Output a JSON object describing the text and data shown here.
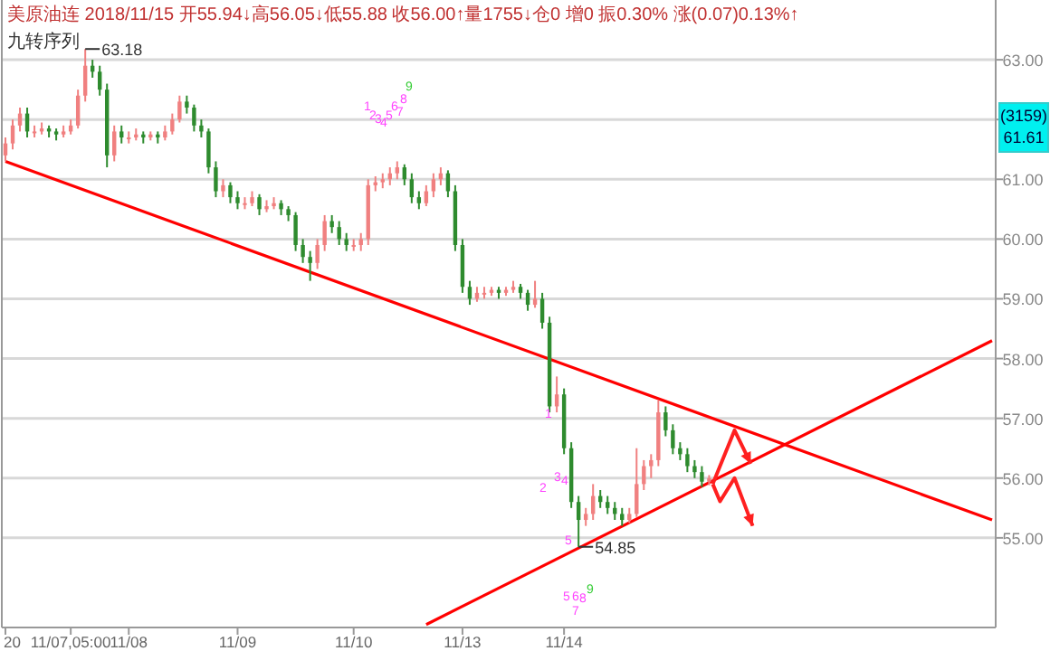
{
  "chart_data": {
    "type": "candlestick",
    "title": "美原油连 2018/11/15 开55.94↓高56.05↓低55.88 收56.00↑量1755↓仓0 增0 振0.30% 涨(0.07)0.13%↑",
    "subtitle": "九转序列",
    "categories": [
      "20",
      null,
      null,
      null,
      null,
      null,
      null,
      null,
      null,
      "11/07,05:00",
      null,
      null,
      null,
      null,
      null,
      null,
      null,
      "11/08",
      null,
      null,
      null,
      null,
      null,
      null,
      null,
      null,
      null,
      null,
      null,
      null,
      null,
      null,
      "11/09",
      null,
      null,
      null,
      null,
      null,
      null,
      null,
      null,
      null,
      null,
      null,
      null,
      null,
      null,
      null,
      "11/10",
      null,
      null,
      null,
      null,
      null,
      null,
      null,
      null,
      null,
      null,
      null,
      null,
      null,
      null,
      "11/13",
      null,
      null,
      null,
      null,
      null,
      null,
      null,
      null,
      null,
      null,
      null,
      null,
      null,
      "11/14",
      null,
      null,
      null,
      null,
      null,
      null,
      null,
      null,
      null,
      null,
      null,
      null,
      null,
      null,
      null,
      null,
      null,
      null,
      null,
      null,
      null,
      null,
      null,
      null,
      null,
      null,
      null,
      null,
      null,
      null,
      null,
      null,
      null,
      null,
      null,
      null,
      null,
      null,
      null,
      null,
      null,
      null,
      null,
      null,
      null,
      null,
      null,
      null,
      null,
      null,
      null,
      null,
      null,
      null,
      null,
      null,
      null,
      null,
      null
    ],
    "ohlc": [
      [
        61.4,
        61.7,
        61.3,
        61.6
      ],
      [
        61.6,
        62.0,
        61.5,
        61.9
      ],
      [
        61.9,
        62.2,
        61.8,
        62.1
      ],
      [
        62.1,
        62.2,
        61.7,
        61.8
      ],
      [
        61.8,
        61.9,
        61.7,
        61.8
      ],
      [
        61.8,
        61.95,
        61.75,
        61.85
      ],
      [
        61.85,
        61.9,
        61.7,
        61.8
      ],
      [
        61.8,
        61.85,
        61.65,
        61.75
      ],
      [
        61.75,
        61.9,
        61.7,
        61.8
      ],
      [
        61.8,
        62.0,
        61.75,
        61.9
      ],
      [
        61.9,
        62.5,
        61.85,
        62.4
      ],
      [
        62.4,
        63.18,
        62.3,
        62.9
      ],
      [
        62.9,
        63.0,
        62.7,
        62.8
      ],
      [
        62.8,
        62.9,
        62.4,
        62.5
      ],
      [
        62.5,
        62.6,
        61.2,
        61.4
      ],
      [
        61.4,
        61.9,
        61.3,
        61.8
      ],
      [
        61.8,
        61.9,
        61.6,
        61.7
      ],
      [
        61.7,
        61.8,
        61.6,
        61.7
      ],
      [
        61.7,
        61.85,
        61.65,
        61.75
      ],
      [
        61.75,
        61.8,
        61.6,
        61.7
      ],
      [
        61.7,
        61.8,
        61.65,
        61.75
      ],
      [
        61.75,
        61.8,
        61.6,
        61.7
      ],
      [
        61.7,
        61.9,
        61.65,
        61.8
      ],
      [
        61.8,
        62.1,
        61.75,
        62.0
      ],
      [
        62.0,
        62.4,
        61.95,
        62.3
      ],
      [
        62.3,
        62.4,
        62.1,
        62.2
      ],
      [
        62.2,
        62.25,
        61.8,
        61.9
      ],
      [
        61.9,
        62.0,
        61.7,
        61.8
      ],
      [
        61.8,
        61.85,
        61.1,
        61.2
      ],
      [
        61.2,
        61.3,
        60.7,
        60.8
      ],
      [
        60.8,
        61.0,
        60.7,
        60.9
      ],
      [
        60.9,
        60.95,
        60.6,
        60.7
      ],
      [
        60.7,
        60.8,
        60.5,
        60.6
      ],
      [
        60.6,
        60.7,
        60.5,
        60.6
      ],
      [
        60.6,
        60.8,
        60.55,
        60.7
      ],
      [
        60.7,
        60.75,
        60.4,
        60.5
      ],
      [
        60.5,
        60.65,
        60.45,
        60.55
      ],
      [
        60.55,
        60.7,
        60.5,
        60.6
      ],
      [
        60.6,
        60.65,
        60.4,
        60.5
      ],
      [
        60.5,
        60.55,
        60.3,
        60.4
      ],
      [
        60.4,
        60.45,
        59.8,
        59.9
      ],
      [
        59.9,
        60.0,
        59.6,
        59.7
      ],
      [
        59.7,
        59.8,
        59.3,
        59.6
      ],
      [
        59.6,
        60.0,
        59.5,
        59.9
      ],
      [
        59.9,
        60.4,
        59.8,
        60.3
      ],
      [
        60.3,
        60.4,
        60.1,
        60.2
      ],
      [
        60.2,
        60.3,
        59.9,
        60.0
      ],
      [
        60.0,
        60.1,
        59.8,
        59.9
      ],
      [
        59.9,
        60.0,
        59.8,
        59.9
      ],
      [
        59.9,
        60.1,
        59.8,
        60.0
      ],
      [
        60.0,
        61.0,
        59.9,
        60.9
      ],
      [
        60.9,
        61.05,
        60.8,
        60.95
      ],
      [
        60.95,
        61.1,
        60.85,
        61.0
      ],
      [
        61.0,
        61.2,
        60.9,
        61.1
      ],
      [
        61.1,
        61.3,
        61.0,
        61.2
      ],
      [
        61.2,
        61.25,
        60.9,
        61.0
      ],
      [
        61.0,
        61.1,
        60.6,
        60.7
      ],
      [
        60.7,
        60.8,
        60.5,
        60.6
      ],
      [
        60.6,
        60.9,
        60.55,
        60.8
      ],
      [
        60.8,
        61.1,
        60.7,
        61.0
      ],
      [
        61.0,
        61.2,
        60.9,
        61.1
      ],
      [
        61.1,
        61.15,
        60.7,
        60.8
      ],
      [
        60.8,
        60.9,
        59.8,
        59.9
      ],
      [
        59.9,
        60.0,
        59.1,
        59.2
      ],
      [
        59.2,
        59.3,
        58.9,
        59.0
      ],
      [
        59.0,
        59.2,
        58.95,
        59.1
      ],
      [
        59.1,
        59.2,
        59.0,
        59.1
      ],
      [
        59.1,
        59.2,
        59.05,
        59.15
      ],
      [
        59.15,
        59.2,
        59.0,
        59.1
      ],
      [
        59.1,
        59.2,
        59.05,
        59.15
      ],
      [
        59.15,
        59.3,
        59.1,
        59.2
      ],
      [
        59.2,
        59.25,
        59.0,
        59.1
      ],
      [
        59.1,
        59.15,
        58.8,
        58.9
      ],
      [
        58.9,
        59.3,
        58.85,
        59.0
      ],
      [
        59.0,
        59.1,
        58.5,
        58.6
      ],
      [
        58.6,
        58.7,
        57.1,
        57.2
      ],
      [
        57.2,
        57.7,
        57.1,
        57.4
      ],
      [
        57.4,
        57.5,
        56.4,
        56.5
      ],
      [
        56.5,
        56.6,
        55.5,
        55.6
      ],
      [
        55.6,
        55.7,
        54.85,
        55.3
      ],
      [
        55.3,
        55.5,
        55.2,
        55.4
      ],
      [
        55.4,
        55.9,
        55.3,
        55.7
      ],
      [
        55.7,
        55.8,
        55.5,
        55.6
      ],
      [
        55.6,
        55.7,
        55.4,
        55.5
      ],
      [
        55.5,
        55.6,
        55.3,
        55.4
      ],
      [
        55.4,
        55.5,
        55.2,
        55.3
      ],
      [
        55.3,
        55.5,
        55.25,
        55.4
      ],
      [
        55.4,
        56.5,
        55.35,
        55.9
      ],
      [
        55.9,
        56.3,
        55.8,
        56.2
      ],
      [
        56.2,
        56.4,
        56.0,
        56.3
      ],
      [
        56.3,
        57.3,
        56.2,
        57.1
      ],
      [
        57.1,
        57.2,
        56.7,
        56.8
      ],
      [
        56.8,
        56.9,
        56.4,
        56.5
      ],
      [
        56.5,
        56.6,
        56.3,
        56.4
      ],
      [
        56.4,
        56.5,
        56.1,
        56.2
      ],
      [
        56.2,
        56.3,
        56.0,
        56.1
      ],
      [
        56.1,
        56.2,
        55.85,
        55.94
      ],
      [
        55.94,
        56.05,
        55.88,
        56.0
      ],
      null,
      null,
      null,
      null,
      null,
      null,
      null,
      null,
      null,
      null,
      null,
      null,
      null,
      null,
      null,
      null,
      null,
      null,
      null,
      null,
      null,
      null,
      null,
      null,
      null,
      null,
      null,
      null,
      null,
      null,
      null,
      null,
      null,
      null,
      null,
      null,
      null,
      null,
      null
    ],
    "series": [
      {
        "type": "line",
        "color": "#ff0000",
        "values": [
          61.3,
          null,
          null,
          null,
          null,
          null,
          null,
          null,
          null,
          null,
          null,
          null,
          null,
          null,
          null,
          null,
          null,
          null,
          null,
          null,
          null,
          null,
          null,
          null,
          null,
          null,
          null,
          null,
          null,
          null,
          null,
          null,
          null,
          null,
          null,
          null,
          null,
          null,
          null,
          null,
          null,
          null,
          null,
          null,
          null,
          null,
          null,
          null,
          null,
          null,
          null,
          null,
          null,
          null,
          null,
          null,
          null,
          null,
          null,
          null,
          null,
          null,
          null,
          null,
          null,
          null,
          null,
          null,
          null,
          null,
          null,
          null,
          null,
          null,
          null,
          null,
          null,
          null,
          null,
          null,
          null,
          null,
          null,
          null,
          null,
          null,
          null,
          null,
          null,
          null,
          null,
          null,
          null,
          null,
          null,
          null,
          null,
          null,
          null,
          null,
          null,
          null,
          null,
          null,
          null,
          null,
          null,
          null,
          null,
          null,
          null,
          null,
          null,
          null,
          null,
          null,
          null,
          null,
          null,
          null,
          null,
          null,
          null,
          null,
          null,
          null,
          null,
          null,
          null,
          null,
          null,
          null,
          null,
          null,
          null,
          null,
          55.3
        ]
      },
      {
        "type": "line",
        "color": "#ff0000",
        "values": [
          null,
          null,
          null,
          null,
          null,
          null,
          null,
          null,
          null,
          null,
          null,
          null,
          null,
          null,
          null,
          null,
          null,
          null,
          null,
          null,
          null,
          null,
          null,
          null,
          null,
          null,
          null,
          null,
          null,
          null,
          null,
          null,
          null,
          null,
          null,
          null,
          null,
          null,
          null,
          null,
          null,
          null,
          null,
          null,
          null,
          null,
          null,
          null,
          null,
          null,
          null,
          null,
          null,
          null,
          null,
          null,
          null,
          null,
          53.55,
          null,
          null,
          null,
          null,
          null,
          null,
          null,
          null,
          null,
          null,
          null,
          null,
          null,
          null,
          null,
          null,
          null,
          null,
          null,
          null,
          null,
          null,
          null,
          null,
          null,
          null,
          null,
          null,
          null,
          null,
          null,
          null,
          null,
          null,
          null,
          null,
          null,
          null,
          null,
          null,
          null,
          null,
          null,
          null,
          null,
          null,
          null,
          null,
          null,
          null,
          null,
          null,
          null,
          null,
          null,
          null,
          null,
          null,
          null,
          null,
          null,
          null,
          null,
          null,
          null,
          null,
          null,
          null,
          null,
          null,
          null,
          null,
          null,
          null,
          null,
          null,
          null,
          58.3
        ]
      }
    ],
    "ylim": [
      53.5,
      64.0
    ],
    "yticks": [
      {
        "value": 55,
        "label": "55.00"
      },
      {
        "value": 56,
        "label": "56.00"
      },
      {
        "value": 57,
        "label": "57.00"
      },
      {
        "value": 58,
        "label": "58.00"
      },
      {
        "value": 59,
        "label": "59.00"
      },
      {
        "value": 60,
        "label": "60.00"
      },
      {
        "value": 61,
        "label": "61.00"
      },
      {
        "value": 62,
        "label": null
      },
      {
        "value": 63,
        "label": "63.00"
      }
    ],
    "grid": "y",
    "annotations": [
      "63.18",
      "54.85",
      "(3159)",
      "61.61",
      "1",
      "2",
      "3",
      "4",
      "5",
      "6",
      "7",
      "8",
      "9",
      "1",
      "2",
      "3",
      "4",
      "5",
      "5",
      "6",
      "7",
      "8",
      "9"
    ]
  }
}
